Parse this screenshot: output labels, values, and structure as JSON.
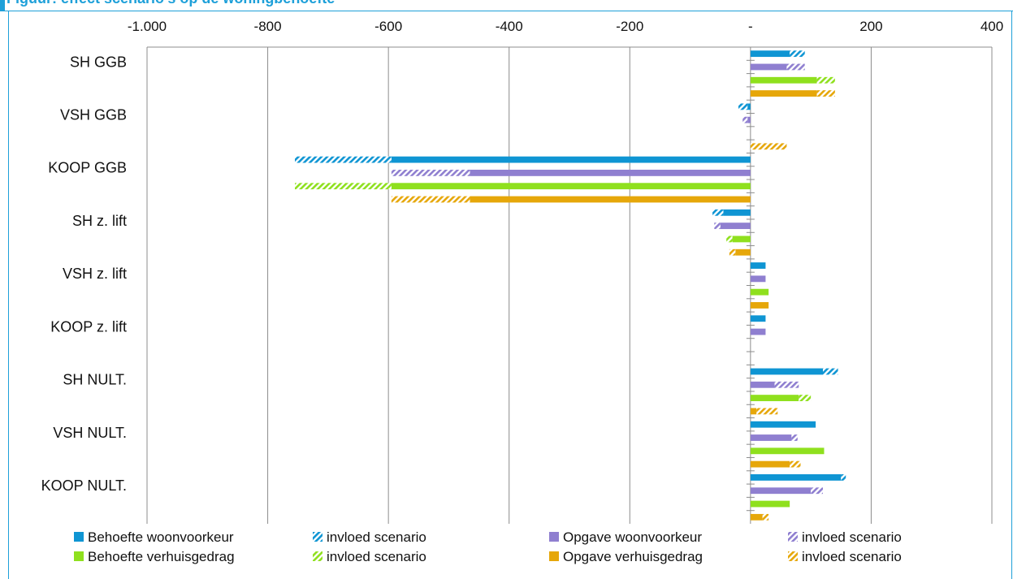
{
  "header": {
    "caption": "Figuur: effect scenario's op de woningbehoefte"
  },
  "chart_data": {
    "type": "bar",
    "orientation": "horizontal",
    "stacked": true,
    "xlim": [
      -1000,
      400
    ],
    "x_ticks": [
      -1000,
      -800,
      -600,
      -400,
      -200,
      0,
      200,
      400
    ],
    "x_tick_labels": [
      "-1.000",
      "-800",
      "-600",
      "-400",
      "-200",
      "-",
      "200",
      "400"
    ],
    "axis_position": "top",
    "grid": true,
    "legend_position": "bottom",
    "categories": [
      "SH GGB",
      "VSH GGB",
      "KOOP GGB",
      "SH z. lift",
      "VSH z. lift",
      "KOOP z. lift",
      "SH NULT.",
      "VSH NULT.",
      "KOOP NULT."
    ],
    "series": [
      {
        "name": "Behoefte woonvoorkeur",
        "color": "#0f95d3",
        "base": [
          65,
          -5,
          -595,
          -45,
          25,
          25,
          120,
          108,
          150
        ],
        "scenario": [
          25,
          -15,
          -160,
          -18,
          0,
          0,
          25,
          0,
          8
        ]
      },
      {
        "name": "Opgave woonvoorkeur",
        "color": "#8f7fd0",
        "base": [
          60,
          -5,
          -465,
          -50,
          25,
          25,
          40,
          68,
          100
        ],
        "scenario": [
          30,
          -8,
          -130,
          -10,
          0,
          0,
          40,
          10,
          20
        ]
      },
      {
        "name": "Behoefte verhuisgedrag",
        "color": "#8fe01e",
        "base": [
          110,
          0,
          -595,
          -30,
          30,
          0,
          80,
          122,
          65
        ],
        "scenario": [
          30,
          0,
          -160,
          -10,
          0,
          0,
          20,
          0,
          0
        ]
      },
      {
        "name": "Opgave verhuisgedrag",
        "color": "#e6a70a",
        "base": [
          110,
          0,
          -465,
          -25,
          30,
          0,
          10,
          65,
          20
        ],
        "scenario": [
          30,
          60,
          -130,
          -10,
          0,
          0,
          35,
          18,
          10
        ]
      }
    ],
    "scenario_label": "invloed scenario",
    "scenario_pattern": "diagonal hatch"
  }
}
